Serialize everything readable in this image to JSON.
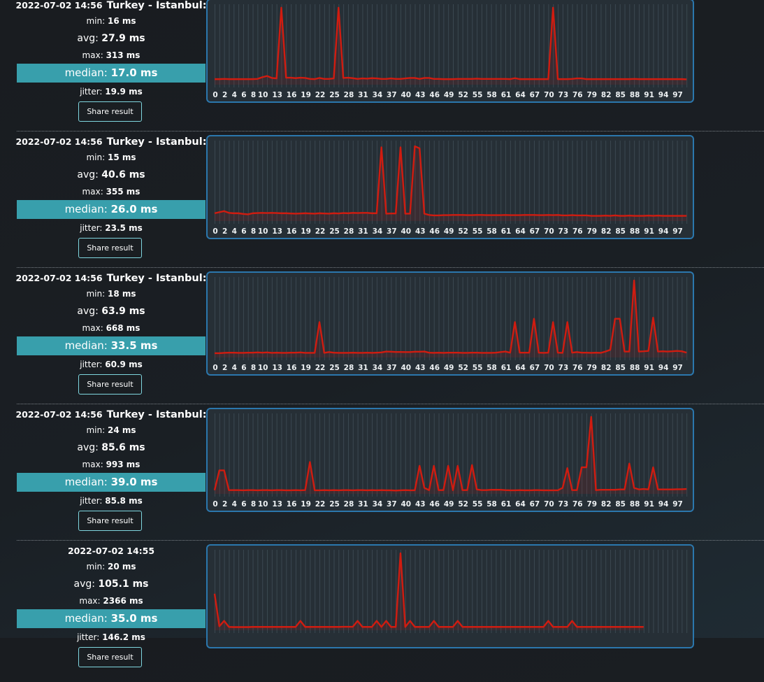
{
  "labels": {
    "min": "min: ",
    "avg": "avg: ",
    "max": "max: ",
    "median": "median: ",
    "jitter": "jitter: ",
    "share": "Share result"
  },
  "colors": {
    "median_bar": "#389fac",
    "line": "#d01c10",
    "chart_border": "#2b77ad",
    "chart_bg": "#262f36"
  },
  "entries": [
    {
      "date": "2022-07-02 14:56",
      "location": "Turkey - Istanbul:",
      "min": "16 ms",
      "avg": "27.9 ms",
      "max": "313 ms",
      "median": "17.0 ms",
      "jitter": "19.9 ms"
    },
    {
      "date": "2022-07-02 14:56",
      "location": "Turkey - Istanbul:",
      "min": "15 ms",
      "avg": "40.6 ms",
      "max": "355 ms",
      "median": "26.0 ms",
      "jitter": "23.5 ms"
    },
    {
      "date": "2022-07-02 14:56",
      "location": "Turkey - Istanbul:",
      "min": "18 ms",
      "avg": "63.9 ms",
      "max": "668 ms",
      "median": "33.5 ms",
      "jitter": "60.9 ms"
    },
    {
      "date": "2022-07-02 14:56",
      "location": "Turkey - Istanbul:",
      "min": "24 ms",
      "avg": "85.6 ms",
      "max": "993 ms",
      "median": "39.0 ms",
      "jitter": "85.8 ms"
    },
    {
      "date": "2022-07-02 14:55",
      "location": "",
      "min": "20 ms",
      "avg": "105.1 ms",
      "max": "2366 ms",
      "median": "35.0 ms",
      "jitter": "146.2 ms"
    }
  ],
  "chart_data": [
    {
      "type": "line",
      "x_tick_labels": [
        "0",
        "2",
        "4",
        "6",
        "8",
        "10",
        "13",
        "16",
        "19",
        "22",
        "25",
        "28",
        "31",
        "34",
        "37",
        "40",
        "43",
        "46",
        "49",
        "52",
        "55",
        "58",
        "61",
        "64",
        "67",
        "70",
        "73",
        "76",
        "79",
        "82",
        "85",
        "88",
        "91",
        "94",
        "97"
      ],
      "ylim": [
        0,
        313
      ],
      "values": [
        17,
        17,
        18,
        17,
        17,
        17,
        17,
        17,
        17,
        18,
        25,
        30,
        22,
        20,
        313,
        23,
        23,
        21,
        23,
        22,
        18,
        17,
        22,
        18,
        18,
        20,
        313,
        22,
        23,
        21,
        18,
        20,
        19,
        21,
        20,
        18,
        18,
        20,
        18,
        18,
        20,
        22,
        22,
        18,
        22,
        22,
        18,
        18,
        17,
        17,
        17,
        18,
        18,
        18,
        18,
        19,
        18,
        18,
        18,
        18,
        18,
        18,
        17,
        21,
        17,
        17,
        17,
        17,
        17,
        17,
        17,
        313,
        17,
        17,
        17,
        18,
        20,
        20,
        17,
        17,
        17,
        17,
        17,
        17,
        17,
        17,
        17,
        17,
        18,
        17,
        17,
        17,
        17,
        17,
        17,
        17,
        17,
        17,
        17,
        16
      ]
    },
    {
      "type": "line",
      "x_tick_labels": [
        "0",
        "2",
        "4",
        "6",
        "8",
        "10",
        "13",
        "16",
        "19",
        "22",
        "25",
        "28",
        "31",
        "34",
        "37",
        "40",
        "43",
        "46",
        "49",
        "52",
        "55",
        "58",
        "61",
        "64",
        "67",
        "70",
        "73",
        "76",
        "79",
        "82",
        "85",
        "88",
        "91",
        "94",
        "97"
      ],
      "ylim": [
        0,
        355
      ],
      "values": [
        30,
        35,
        40,
        32,
        30,
        30,
        27,
        25,
        30,
        31,
        32,
        31,
        32,
        31,
        30,
        30,
        29,
        28,
        29,
        30,
        29,
        28,
        30,
        29,
        28,
        30,
        29,
        31,
        30,
        32,
        31,
        32,
        32,
        30,
        30,
        340,
        28,
        29,
        29,
        340,
        28,
        28,
        345,
        335,
        28,
        22,
        20,
        20,
        21,
        21,
        22,
        22,
        22,
        21,
        21,
        22,
        22,
        21,
        21,
        21,
        21,
        22,
        21,
        21,
        21,
        22,
        22,
        22,
        21,
        21,
        22,
        21,
        22,
        20,
        20,
        21,
        20,
        20,
        20,
        18,
        18,
        18,
        19,
        18,
        20,
        18,
        18,
        19,
        18,
        18,
        18,
        19,
        18,
        19,
        18,
        18,
        18,
        18,
        18,
        18
      ]
    },
    {
      "type": "line",
      "x_tick_labels": [
        "0",
        "2",
        "4",
        "6",
        "8",
        "10",
        "13",
        "16",
        "19",
        "22",
        "25",
        "28",
        "31",
        "34",
        "37",
        "40",
        "43",
        "46",
        "49",
        "52",
        "55",
        "58",
        "61",
        "64",
        "67",
        "70",
        "73",
        "76",
        "79",
        "82",
        "85",
        "88",
        "91",
        "94",
        "97"
      ],
      "ylim": [
        0,
        668
      ],
      "values": [
        25,
        25,
        28,
        30,
        30,
        28,
        28,
        30,
        30,
        32,
        30,
        32,
        28,
        30,
        28,
        28,
        30,
        30,
        32,
        28,
        28,
        28,
        300,
        28,
        35,
        30,
        28,
        28,
        28,
        30,
        28,
        28,
        30,
        28,
        30,
        32,
        40,
        38,
        36,
        36,
        35,
        35,
        38,
        38,
        40,
        30,
        28,
        30,
        28,
        30,
        30,
        30,
        28,
        28,
        30,
        30,
        28,
        28,
        28,
        30,
        35,
        40,
        30,
        300,
        30,
        30,
        30,
        330,
        30,
        28,
        30,
        300,
        30,
        28,
        300,
        30,
        35,
        30,
        30,
        28,
        30,
        28,
        40,
        55,
        330,
        330,
        40,
        40,
        668,
        40,
        42,
        45,
        340,
        40,
        42,
        40,
        42,
        45,
        42,
        30
      ]
    },
    {
      "type": "line",
      "x_tick_labels": [
        "0",
        "2",
        "4",
        "6",
        "8",
        "10",
        "13",
        "16",
        "19",
        "22",
        "25",
        "28",
        "31",
        "34",
        "37",
        "40",
        "43",
        "46",
        "49",
        "52",
        "55",
        "58",
        "61",
        "64",
        "67",
        "70",
        "73",
        "76",
        "79",
        "82",
        "85",
        "88",
        "91",
        "94",
        "97"
      ],
      "ylim": [
        0,
        993
      ],
      "values": [
        30,
        290,
        290,
        30,
        30,
        30,
        28,
        30,
        30,
        28,
        30,
        30,
        28,
        30,
        30,
        28,
        28,
        30,
        28,
        30,
        400,
        28,
        28,
        30,
        28,
        30,
        28,
        30,
        30,
        28,
        30,
        30,
        28,
        30,
        28,
        30,
        28,
        28,
        25,
        28,
        30,
        28,
        28,
        350,
        60,
        30,
        350,
        30,
        30,
        350,
        30,
        350,
        30,
        30,
        360,
        40,
        30,
        30,
        35,
        35,
        35,
        30,
        28,
        28,
        30,
        28,
        28,
        30,
        30,
        28,
        28,
        28,
        28,
        60,
        320,
        30,
        30,
        330,
        330,
        993,
        30,
        35,
        35,
        35,
        35,
        40,
        40,
        380,
        60,
        40,
        45,
        40,
        330,
        40,
        40,
        40,
        40,
        42,
        42,
        45
      ]
    },
    {
      "type": "line",
      "x_tick_labels": [],
      "ylim": [
        0,
        2366
      ],
      "values": [
        1100,
        80,
        250,
        60,
        55,
        55,
        55,
        55,
        60,
        60,
        60,
        60,
        60,
        60,
        60,
        60,
        60,
        60,
        250,
        60,
        60,
        60,
        60,
        60,
        60,
        60,
        60,
        65,
        65,
        65,
        250,
        60,
        60,
        60,
        250,
        60,
        250,
        60,
        60,
        2366,
        60,
        250,
        60,
        60,
        60,
        60,
        250,
        60,
        60,
        60,
        60,
        250,
        60,
        60,
        60,
        60,
        60,
        60,
        60,
        60,
        60,
        60,
        60,
        60,
        60,
        60,
        60,
        60,
        60,
        60,
        250,
        60,
        60,
        60,
        60,
        250,
        60,
        60,
        60,
        60,
        60,
        60,
        60,
        60,
        60,
        60,
        60,
        60,
        60,
        60,
        60
      ]
    }
  ]
}
